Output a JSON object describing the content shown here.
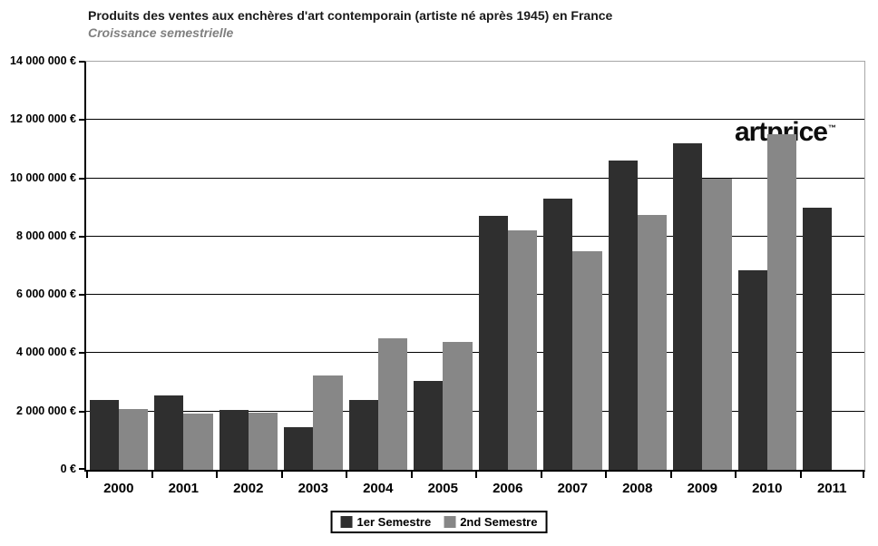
{
  "header": {
    "title": "Produits des ventes aux enchères d'art contemporain (artiste né après 1945) en France",
    "subtitle": "Croissance semestrielle"
  },
  "watermark": {
    "text": "artprice",
    "tm": "™"
  },
  "chart_data": {
    "type": "bar",
    "title": "Produits des ventes aux enchères d'art contemporain (artiste né après 1945) en France",
    "subtitle": "Croissance semestrielle",
    "categories": [
      "2000",
      "2001",
      "2002",
      "2003",
      "2004",
      "2005",
      "2006",
      "2007",
      "2008",
      "2009",
      "2010",
      "2011"
    ],
    "series": [
      {
        "name": "1er Semestre",
        "color": "#2f2f2f",
        "values": [
          2400000,
          2550000,
          2050000,
          1450000,
          2400000,
          3050000,
          8700000,
          9300000,
          10600000,
          11200000,
          6850000,
          9000000
        ]
      },
      {
        "name": "2nd Semestre",
        "color": "#878787",
        "values": [
          2100000,
          1930000,
          1950000,
          3250000,
          4500000,
          4400000,
          8200000,
          7500000,
          8750000,
          10000000,
          11500000,
          null
        ]
      }
    ],
    "ylim": [
      0,
      14000000
    ],
    "ytick_step": 2000000,
    "ytick_labels": [
      "0 €",
      "2 000 000 €",
      "4 000 000 €",
      "6 000 000 €",
      "8 000 000 €",
      "10 000 000 €",
      "12 000 000 €",
      "14 000 000 €"
    ],
    "grid": true,
    "legend_position": "bottom"
  }
}
